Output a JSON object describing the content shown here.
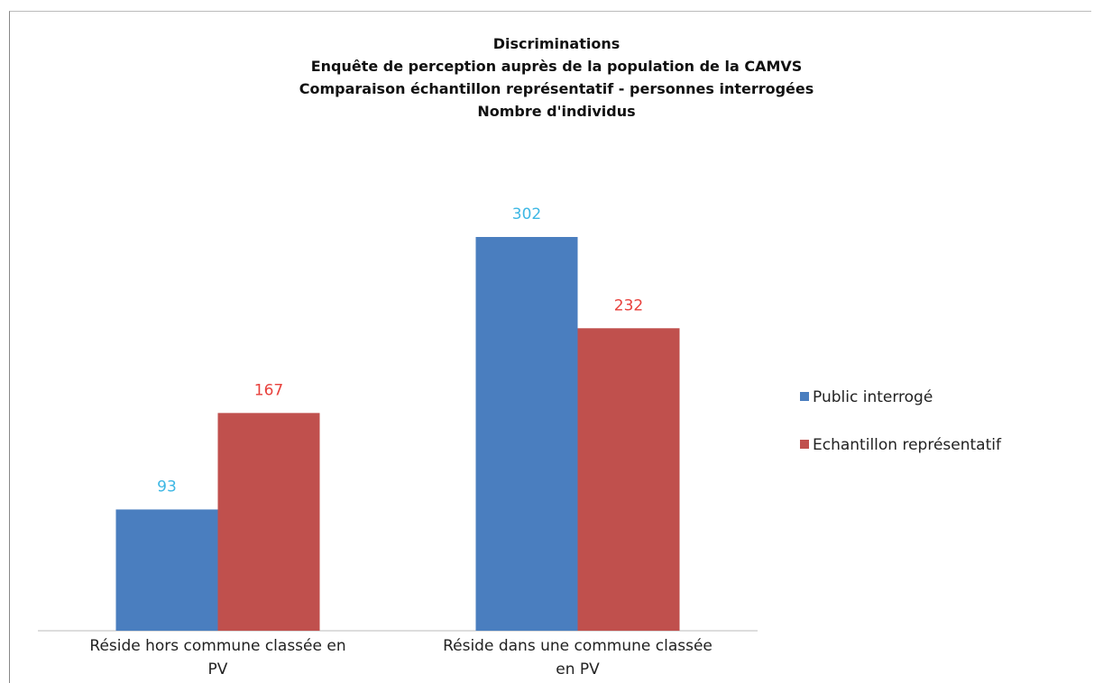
{
  "chart_data": {
    "type": "bar",
    "title": "Discriminations\nEnquête de perception auprès de la population de la CAMVS\nComparaison échantillon représentatif - personnes interrogées\nNombre d'individus",
    "categories": [
      "Réside hors commune classée en PV",
      "Réside dans une commune classée en PV"
    ],
    "series": [
      {
        "name": "Public interrogé",
        "color": "#4a7ebf",
        "label_color": "#3db7e4",
        "values": [
          93,
          302
        ]
      },
      {
        "name": "Echantillon représentatif",
        "color": "#c0504d",
        "label_color": "#e8413c",
        "values": [
          167,
          232
        ]
      }
    ],
    "legend": "right"
  }
}
